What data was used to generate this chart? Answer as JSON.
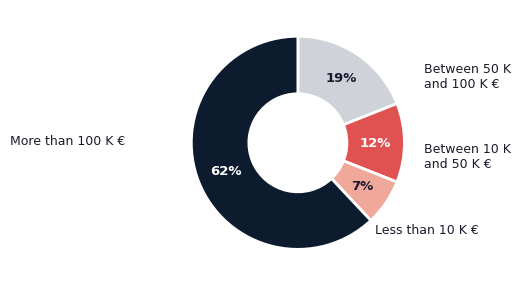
{
  "labels": [
    "Between 50 K\nand 100 K €",
    "Between 10 K\nand 50 K €",
    "Less than 10 K €",
    "More than 100 K €"
  ],
  "values": [
    19,
    12,
    7,
    62
  ],
  "colors": [
    "#d0d2da",
    "#e05252",
    "#f0a89a",
    "#0d1b2e"
  ],
  "pct_labels": [
    "19%",
    "12%",
    "7%",
    "62%"
  ],
  "pct_colors": [
    "#1a1a2e",
    "white",
    "#1a1a2e",
    "white"
  ],
  "background_color": "#ffffff",
  "wedge_edge_color": "#ffffff",
  "startangle": 90,
  "font_family": "DejaVu Sans"
}
